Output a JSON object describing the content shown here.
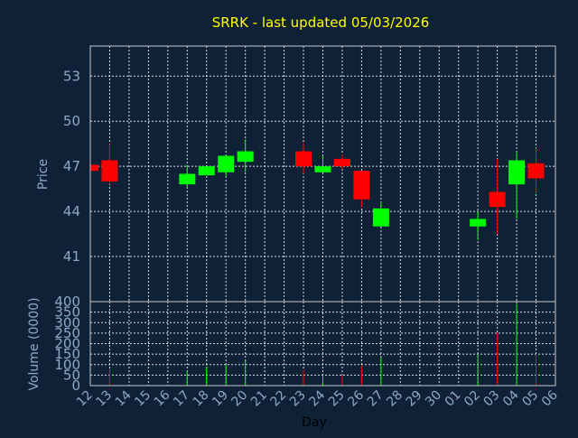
{
  "colors": {
    "background": "#0f2136",
    "up": "#00ff00",
    "down": "#ff0000",
    "title": "#ffff00",
    "axis_text": "#8fa8c8",
    "grid": "#ffffff",
    "frame": "#c8c8c8"
  },
  "chart_data": {
    "type": "candlestick",
    "title": "SRRK - last updated 05/03/2026",
    "price_ylabel": "Price",
    "volume_ylabel": "Volume (0000)",
    "xlabel": "Day",
    "price_ylim": [
      38,
      55
    ],
    "price_yticks": [
      41,
      44,
      47,
      50,
      53
    ],
    "volume_ylim": [
      0,
      400
    ],
    "volume_yticks": [
      0,
      50,
      100,
      150,
      200,
      250,
      300,
      350,
      400
    ],
    "grid": true,
    "x_tick_labels": [
      "12",
      "13",
      "14",
      "15",
      "16",
      "17",
      "18",
      "19",
      "20",
      "21",
      "22",
      "23",
      "24",
      "25",
      "26",
      "27",
      "28",
      "29",
      "30",
      "01",
      "02",
      "03",
      "04",
      "05",
      "06"
    ],
    "candles": [
      {
        "day": "12",
        "open": 47.1,
        "close": 46.7,
        "high": 47.2,
        "low": 46.6,
        "volume": 10
      },
      {
        "day": "13",
        "open": 47.4,
        "close": 46.0,
        "high": 48.5,
        "low": 45.8,
        "volume": 80
      },
      {
        "day": "17",
        "open": 45.8,
        "close": 46.5,
        "high": 47.1,
        "low": 45.6,
        "volume": 70
      },
      {
        "day": "18",
        "open": 46.4,
        "close": 47.0,
        "high": 47.0,
        "low": 46.4,
        "volume": 90
      },
      {
        "day": "19",
        "open": 46.6,
        "close": 47.7,
        "high": 47.7,
        "low": 46.3,
        "volume": 100
      },
      {
        "day": "20",
        "open": 47.3,
        "close": 48.0,
        "high": 48.8,
        "low": 46.6,
        "volume": 120
      },
      {
        "day": "23",
        "open": 48.0,
        "close": 47.0,
        "high": 48.6,
        "low": 46.5,
        "volume": 75
      },
      {
        "day": "24",
        "open": 46.6,
        "close": 47.0,
        "high": 47.7,
        "low": 46.6,
        "volume": 50
      },
      {
        "day": "25",
        "open": 47.5,
        "close": 47.0,
        "high": 47.8,
        "low": 46.8,
        "volume": 50
      },
      {
        "day": "26",
        "open": 46.7,
        "close": 44.8,
        "high": 46.7,
        "low": 44.3,
        "volume": 95
      },
      {
        "day": "27",
        "open": 43.0,
        "close": 44.2,
        "high": 44.6,
        "low": 43.0,
        "volume": 135
      },
      {
        "day": "02",
        "open": 43.0,
        "close": 43.5,
        "high": 44.0,
        "low": 42.1,
        "volume": 150
      },
      {
        "day": "03",
        "open": 45.3,
        "close": 44.3,
        "high": 47.5,
        "low": 42.5,
        "volume": 250
      },
      {
        "day": "04",
        "open": 45.8,
        "close": 47.4,
        "high": 48.0,
        "low": 43.5,
        "volume": 390
      },
      {
        "day": "05",
        "open": 47.2,
        "close": 46.2,
        "high": 48.2,
        "low": 45.2,
        "volume": 150
      }
    ]
  }
}
